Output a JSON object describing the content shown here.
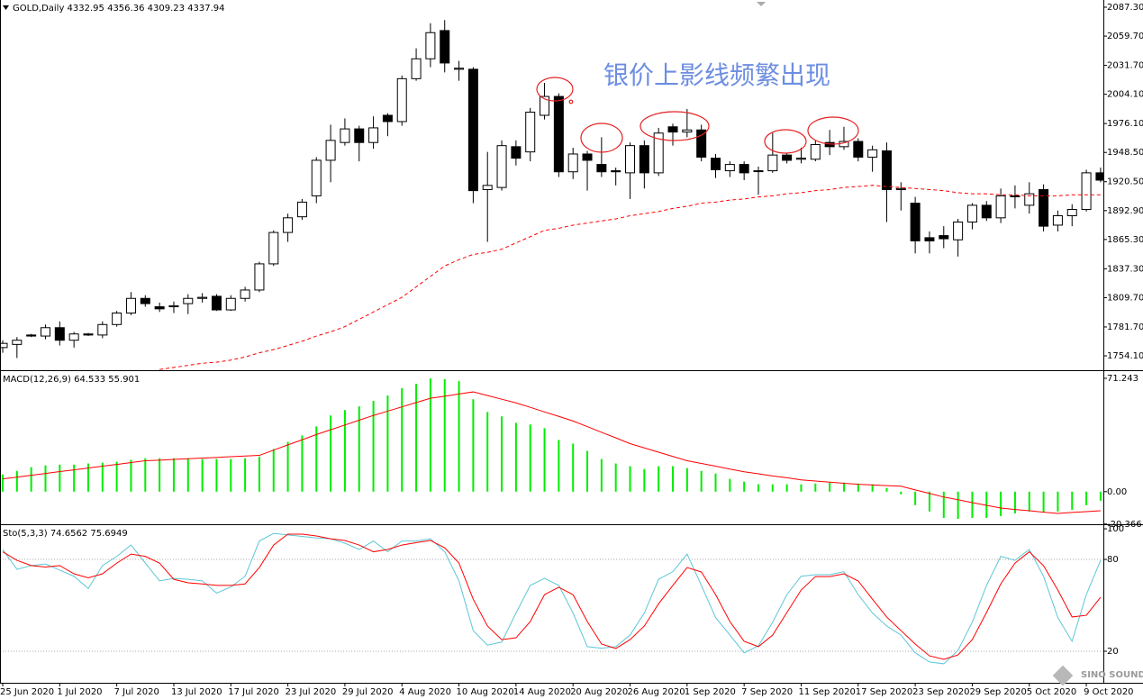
{
  "chart_data": [
    {
      "type": "candlestick",
      "title": "GOLD,Daily  4332.95 4356.36 4309.23 4337.94",
      "annotation": "银价上影线频繁出现",
      "categories": [
        "25 Jun 2020",
        null,
        null,
        null,
        "1 Jul 2020",
        null,
        null,
        null,
        "7 Jul 2020",
        null,
        null,
        null,
        "13 Jul 2020",
        null,
        null,
        null,
        "17 Jul 2020",
        null,
        null,
        null,
        "23 Jul 2020",
        null,
        null,
        null,
        "29 Jul 2020",
        null,
        null,
        null,
        "4 Aug 2020",
        null,
        null,
        null,
        "10 Aug 2020",
        null,
        null,
        null,
        "14 Aug 2020",
        null,
        null,
        null,
        "20 Aug 2020",
        null,
        null,
        null,
        "26 Aug 2020",
        null,
        null,
        null,
        "1 Sep 2020",
        null,
        null,
        null,
        "7 Sep 2020",
        null,
        null,
        null,
        "11 Sep 2020",
        null,
        null,
        null,
        "17 Sep 2020",
        null,
        null,
        null,
        "23 Sep 2020",
        null,
        null,
        null,
        "29 Sep 2020",
        null,
        null,
        null,
        "5 Oct 2020",
        null,
        null,
        null,
        "9 Oct 2020",
        null
      ],
      "open": [
        1762,
        1765,
        1774,
        1773,
        1781,
        1769,
        1775,
        1774,
        1784,
        1795,
        1809,
        1801,
        1801,
        1804,
        1809,
        1811,
        1798,
        1809,
        1817,
        1842,
        1872,
        1887,
        1907,
        1941,
        1958,
        1971,
        1958,
        1984,
        1978,
        2019,
        2038,
        2065,
        2028,
        2028,
        1913,
        1915,
        1954,
        1949,
        1984,
        2002,
        1930,
        1947,
        1937,
        1931,
        1929,
        1955,
        1929,
        1973,
        1968,
        1970,
        1943,
        1931,
        1937,
        1931,
        1931,
        1946,
        1942,
        1942,
        1958,
        1954,
        1959,
        1944,
        1950,
        1913,
        1900,
        1867,
        1869,
        1865,
        1882,
        1898,
        1886,
        1907,
        1898,
        1913,
        1879,
        1888,
        1894,
        1929
      ],
      "high": [
        1769,
        1772,
        1775,
        1784,
        1787,
        1777,
        1776,
        1787,
        1797,
        1815,
        1812,
        1805,
        1806,
        1813,
        1814,
        1813,
        1812,
        1820,
        1844,
        1874,
        1890,
        1904,
        1944,
        1975,
        1981,
        1974,
        1983,
        1986,
        2022,
        2048,
        2072,
        2075,
        2036,
        2030,
        1949,
        1960,
        1960,
        1991,
        2015,
        2005,
        1953,
        1950,
        1963,
        1934,
        1958,
        1960,
        1972,
        1976,
        1990,
        1975,
        1947,
        1940,
        1940,
        1935,
        1967,
        1948,
        1953,
        1960,
        1970,
        1973,
        1962,
        1955,
        1958,
        1920,
        1906,
        1873,
        1878,
        1885,
        1900,
        1902,
        1914,
        1917,
        1920,
        1918,
        1893,
        1899,
        1932,
        1934
      ],
      "low": [
        1757,
        1752,
        1772,
        1770,
        1764,
        1762,
        1773,
        1771,
        1782,
        1793,
        1801,
        1796,
        1795,
        1794,
        1805,
        1797,
        1797,
        1806,
        1815,
        1840,
        1863,
        1884,
        1900,
        1920,
        1955,
        1940,
        1952,
        1964,
        1974,
        2017,
        2030,
        2025,
        2017,
        1900,
        1863,
        1912,
        1936,
        1940,
        1980,
        1925,
        1923,
        1912,
        1925,
        1917,
        1904,
        1914,
        1926,
        1955,
        1963,
        1940,
        1924,
        1925,
        1922,
        1908,
        1929,
        1938,
        1938,
        1940,
        1946,
        1951,
        1940,
        1930,
        1882,
        1893,
        1852,
        1852,
        1857,
        1849,
        1875,
        1883,
        1881,
        1895,
        1890,
        1873,
        1873,
        1878,
        1892,
        1920
      ],
      "close": [
        1766,
        1769,
        1773,
        1781,
        1769,
        1775,
        1774,
        1784,
        1795,
        1809,
        1804,
        1799,
        1802,
        1809,
        1810,
        1798,
        1809,
        1817,
        1842,
        1872,
        1886,
        1901,
        1941,
        1960,
        1971,
        1958,
        1972,
        1978,
        2019,
        2038,
        2063,
        2034,
        2029,
        1912,
        1917,
        1955,
        1943,
        1987,
        2002,
        1930,
        1947,
        1941,
        1930,
        1930,
        1955,
        1929,
        1967,
        1968,
        1970,
        1944,
        1932,
        1937,
        1929,
        1931,
        1946,
        1941,
        1943,
        1956,
        1954,
        1959,
        1944,
        1951,
        1913,
        1914,
        1864,
        1864,
        1866,
        1882,
        1898,
        1886,
        1907,
        1907,
        1909,
        1878,
        1888,
        1894,
        1929,
        1922
      ],
      "up_color": "#ffffff",
      "down_color": "#000000",
      "overlay": {
        "color": "#ff0000",
        "dashed": true,
        "values": [
          null,
          null,
          null,
          null,
          null,
          null,
          null,
          null,
          null,
          null,
          null,
          1741,
          1743,
          1745,
          1747,
          1748,
          1750,
          1753,
          1757,
          1760,
          1764,
          1768,
          1773,
          1777,
          1782,
          1789,
          1796,
          1803,
          1810,
          1820,
          1830,
          1840,
          1846,
          1851,
          1853,
          1856,
          1862,
          1868,
          1874,
          1876,
          1879,
          1881,
          1883,
          1885,
          1888,
          1890,
          1892,
          1895,
          1897,
          1900,
          1901,
          1903,
          1904,
          1906,
          1907,
          1909,
          1910,
          1912,
          1913,
          1915,
          1916,
          1917,
          1916,
          1915,
          1914,
          1913,
          1912,
          1910,
          1909,
          1909,
          1908,
          1908,
          1907,
          1907,
          1907,
          1908,
          1908,
          1908
        ]
      },
      "ylim": [
        1741.2,
        2094.2
      ],
      "yticks": [
        {
          "value": 2087.3,
          "label": "2087.30"
        },
        {
          "value": 2059.7,
          "label": "2059.70"
        },
        {
          "value": 2031.7,
          "label": "2031.70"
        },
        {
          "value": 2004.1,
          "label": "2004.10"
        },
        {
          "value": 1976.1,
          "label": "1976.10"
        },
        {
          "value": 1948.5,
          "label": "1948.50"
        },
        {
          "value": 1920.5,
          "label": "1920.50"
        },
        {
          "value": 1892.9,
          "label": "1892.90"
        },
        {
          "value": 1865.3,
          "label": "1865.30"
        },
        {
          "value": 1837.3,
          "label": "1837.30"
        },
        {
          "value": 1809.7,
          "label": "1809.70"
        },
        {
          "value": 1781.7,
          "label": "1781.70"
        },
        {
          "value": 1754.1,
          "label": "1754.10"
        }
      ]
    },
    {
      "type": "macd",
      "title": "MACD(12,26,9) 64.533 55.901",
      "histogram": {
        "color": "#00ee00",
        "values": [
          10.8,
          13,
          15.4,
          16.5,
          17,
          17,
          17.7,
          18.2,
          18.8,
          20,
          21,
          21,
          21,
          21,
          20.5,
          20.5,
          20.5,
          21,
          22,
          26.8,
          31.3,
          35.3,
          41,
          47.9,
          51.3,
          53.6,
          57,
          60.4,
          65,
          67.8,
          71.2,
          70.7,
          69.5,
          58.1,
          50.1,
          47.3,
          43.3,
          42.2,
          39.9,
          32.5,
          30.2,
          25.6,
          20.5,
          17.7,
          16,
          14.2,
          16,
          16,
          14.8,
          13.1,
          11.4,
          8,
          6.3,
          4.6,
          4.6,
          4.6,
          4.6,
          5.1,
          5.7,
          5.7,
          5.1,
          4.6,
          2.3,
          -1.7,
          -8.5,
          -12.5,
          -16.5,
          -17.1,
          -16.5,
          -16.5,
          -15.4,
          -13.7,
          -12.5,
          -13.1,
          -12.5,
          -11.4,
          -8.5,
          -5.7
        ]
      },
      "signal": {
        "color": "#ff0000",
        "values": [
          8,
          9.1,
          10.3,
          11.4,
          12.6,
          13.7,
          14.8,
          16,
          17.1,
          18.3,
          19.4,
          19.8,
          20.3,
          20.7,
          21.1,
          21.5,
          22,
          22.4,
          22.8,
          26.1,
          29.4,
          32.6,
          35.9,
          38.9,
          41.9,
          44.9,
          47.9,
          50.6,
          53.3,
          56,
          58.7,
          60,
          61.4,
          62.7,
          60.4,
          58.1,
          55.8,
          53,
          50.1,
          47.3,
          44.4,
          40.9,
          37.3,
          33.8,
          30.2,
          27.5,
          24.8,
          22.1,
          19.4,
          17.7,
          16,
          14.2,
          12.5,
          11.2,
          9.9,
          8.7,
          7.4,
          6.7,
          6,
          5.3,
          4.6,
          4.2,
          3.8,
          3.4,
          1.1,
          -1.1,
          -3.4,
          -5.1,
          -6.9,
          -8.6,
          -10.3,
          -11.2,
          -12,
          -12.9,
          -13.7,
          -13.1,
          -12.6,
          -12
        ]
      },
      "ylim": [
        -20.5,
        75.2
      ],
      "yticks": [
        71.243,
        {
          "value": 0,
          "label": "0.00"
        },
        -20.366
      ]
    },
    {
      "type": "stochastic",
      "title": "Sto(5,3,3) 74.6562 75.6949",
      "series": [
        {
          "color": "#5cc7d6",
          "values": [
            86.5,
            73.5,
            76,
            77,
            73,
            69,
            61,
            76,
            82,
            89.4,
            77.6,
            66,
            67.6,
            67,
            66,
            58,
            62,
            69,
            92,
            97,
            96,
            95,
            94,
            93.5,
            90.6,
            86.5,
            92,
            85,
            92,
            92,
            93.5,
            85,
            66,
            33.5,
            24,
            26,
            45,
            63,
            67.6,
            63,
            45,
            23,
            22,
            23,
            30.6,
            45,
            67,
            72,
            83.5,
            63,
            42,
            30.6,
            19,
            23.5,
            39,
            57,
            69,
            70,
            70,
            72,
            57,
            45,
            36.5,
            30.6,
            19,
            13,
            11.8,
            20.6,
            39,
            63,
            82,
            79.4,
            86.5,
            69,
            42,
            26.5,
            57,
            79.4
          ]
        },
        {
          "color": "#ff0000",
          "values": [
            85,
            79.4,
            76,
            75,
            76,
            70.6,
            68,
            70.6,
            77.6,
            83.5,
            82,
            77.6,
            67,
            64.7,
            64,
            63,
            63,
            64,
            74.7,
            89.4,
            96.5,
            96.5,
            95.3,
            93.5,
            92.4,
            89.4,
            85,
            86.5,
            89.4,
            91,
            92.4,
            87.6,
            77.6,
            54,
            36.5,
            27.6,
            28.8,
            39.4,
            57,
            61.8,
            57,
            39.4,
            24.7,
            21.8,
            27.6,
            36.5,
            51,
            63,
            74.7,
            71.8,
            57,
            39.4,
            26.5,
            23,
            30.6,
            45.3,
            60,
            68.8,
            68.8,
            70.6,
            65.9,
            54,
            42.4,
            33.5,
            24.7,
            17,
            14.7,
            17.6,
            27.6,
            45.3,
            64,
            77.6,
            85,
            75.9,
            60,
            42.4,
            43.5,
            55.3
          ]
        }
      ],
      "levels": [
        80,
        20
      ],
      "ylim": [
        -0.6,
        101.8
      ],
      "yticks": [
        100,
        80,
        20
      ]
    }
  ],
  "logo": "SINO SOUND"
}
